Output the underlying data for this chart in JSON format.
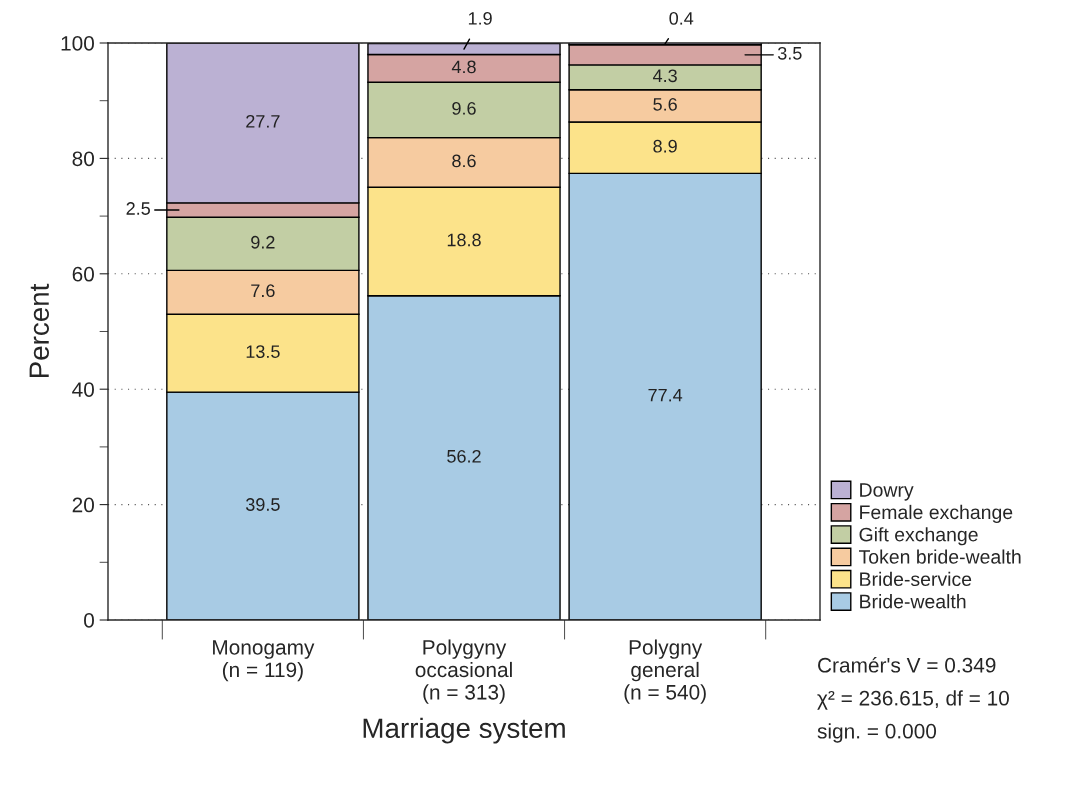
{
  "chart_data": {
    "type": "bar",
    "stacked": true,
    "xlabel": "Marriage system",
    "ylabel": "Percent",
    "categories": [
      "Monogamy\n(n = 119)",
      "Polygyny\noccasional\n(n = 313)",
      "Polygny\ngeneral\n(n = 540)"
    ],
    "series": [
      {
        "name": "Bride-wealth",
        "color": "#a8cbe4",
        "values": [
          39.5,
          56.2,
          77.4
        ]
      },
      {
        "name": "Bride-service",
        "color": "#fce38a",
        "values": [
          13.5,
          18.8,
          8.9
        ]
      },
      {
        "name": "Token bride-wealth",
        "color": "#f6cba0",
        "values": [
          7.6,
          8.6,
          5.6
        ]
      },
      {
        "name": "Gift exchange",
        "color": "#c2cea4",
        "values": [
          9.2,
          9.6,
          4.3
        ]
      },
      {
        "name": "Female exchange",
        "color": "#d5a4a2",
        "values": [
          2.5,
          4.8,
          3.5
        ]
      },
      {
        "name": "Dowry",
        "color": "#bbb1d3",
        "values": [
          27.7,
          1.9,
          0.4
        ]
      }
    ],
    "ylim": [
      0,
      100
    ],
    "yticks": [
      0,
      20,
      40,
      60,
      80,
      100
    ],
    "grid": "y",
    "legend": "bottom right",
    "data_labels": true,
    "annotations": [
      "Cramér's V = 0.349",
      "χ² = 236.615, df = 10",
      "sign. = 0.000"
    ]
  }
}
